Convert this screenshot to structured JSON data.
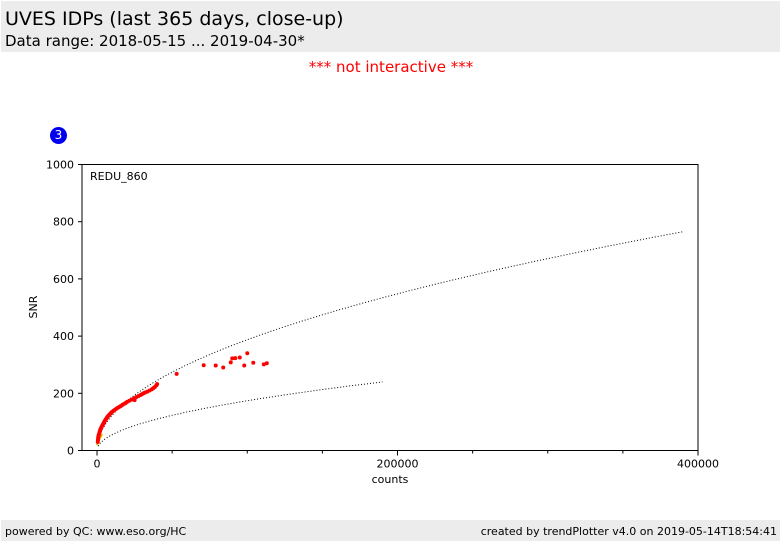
{
  "header": {
    "title": "UVES IDPs (last 365 days, close-up)",
    "subtitle": "Data range: 2018-05-15 ... 2019-04-30*"
  },
  "notice": "*** not interactive ***",
  "badge": "3",
  "footer": {
    "left": "powered by QC: www.eso.org/HC",
    "right": "created by trendPlotter v4.0 on 2019-05-14T18:54:41"
  },
  "chart_data": {
    "type": "scatter",
    "panel_label": "REDU_860",
    "xlabel": "counts",
    "ylabel": "SNR",
    "xlim": [
      -10000,
      400000
    ],
    "ylim": [
      0,
      1000
    ],
    "x_ticks": [
      0,
      200000,
      400000
    ],
    "y_ticks": [
      0,
      200,
      400,
      600,
      800,
      1000
    ],
    "colors": {
      "points": "#ff0000",
      "small_points": "#d4c400",
      "reference": "#000000"
    },
    "reference_curves": [
      {
        "formula": "sqrt",
        "coef": 1.225,
        "x_range": [
          800,
          390000
        ]
      },
      {
        "formula": "sqrt",
        "coef": 0.55,
        "x_range": [
          800,
          190000
        ]
      }
    ],
    "points": [
      [
        500,
        30
      ],
      [
        600,
        35
      ],
      [
        700,
        40
      ],
      [
        800,
        45
      ],
      [
        900,
        48
      ],
      [
        1000,
        52
      ],
      [
        1200,
        55
      ],
      [
        1400,
        58
      ],
      [
        1600,
        62
      ],
      [
        1800,
        66
      ],
      [
        2000,
        70
      ],
      [
        2300,
        74
      ],
      [
        2600,
        78
      ],
      [
        3000,
        82
      ],
      [
        3400,
        86
      ],
      [
        3800,
        90
      ],
      [
        4200,
        94
      ],
      [
        4600,
        98
      ],
      [
        5000,
        102
      ],
      [
        5500,
        106
      ],
      [
        6000,
        110
      ],
      [
        6500,
        114
      ],
      [
        7000,
        118
      ],
      [
        7500,
        121
      ],
      [
        8000,
        124
      ],
      [
        8700,
        128
      ],
      [
        9400,
        132
      ],
      [
        10000,
        135
      ],
      [
        11000,
        139
      ],
      [
        12000,
        143
      ],
      [
        13000,
        147
      ],
      [
        14000,
        150
      ],
      [
        15000,
        153
      ],
      [
        16000,
        156
      ],
      [
        17000,
        160
      ],
      [
        18000,
        163
      ],
      [
        19000,
        166
      ],
      [
        20000,
        170
      ],
      [
        21500,
        174
      ],
      [
        23000,
        178
      ],
      [
        24500,
        182
      ],
      [
        25000,
        176
      ],
      [
        26000,
        186
      ],
      [
        27500,
        190
      ],
      [
        29000,
        194
      ],
      [
        30000,
        197
      ],
      [
        31000,
        200
      ],
      [
        32000,
        203
      ],
      [
        33500,
        206
      ],
      [
        35000,
        210
      ],
      [
        36500,
        214
      ],
      [
        37500,
        218
      ],
      [
        38500,
        222
      ],
      [
        39500,
        228
      ],
      [
        40000,
        232
      ],
      [
        53000,
        268
      ],
      [
        71000,
        298
      ],
      [
        79000,
        297
      ],
      [
        84000,
        290
      ],
      [
        89000,
        308
      ],
      [
        90000,
        322
      ],
      [
        92000,
        323
      ],
      [
        95000,
        325
      ],
      [
        98000,
        297
      ],
      [
        100000,
        340
      ],
      [
        104000,
        307
      ],
      [
        111000,
        301
      ],
      [
        113000,
        305
      ]
    ],
    "small_points": [
      [
        200,
        22
      ],
      [
        300,
        24
      ],
      [
        400,
        26
      ],
      [
        500,
        28
      ],
      [
        600,
        30
      ],
      [
        700,
        31
      ],
      [
        800,
        33
      ],
      [
        900,
        34
      ],
      [
        1100,
        36
      ],
      [
        1300,
        38
      ],
      [
        1500,
        40
      ],
      [
        1700,
        42
      ],
      [
        2000,
        45
      ],
      [
        2300,
        48
      ],
      [
        2700,
        51
      ],
      [
        3100,
        54
      ]
    ]
  }
}
